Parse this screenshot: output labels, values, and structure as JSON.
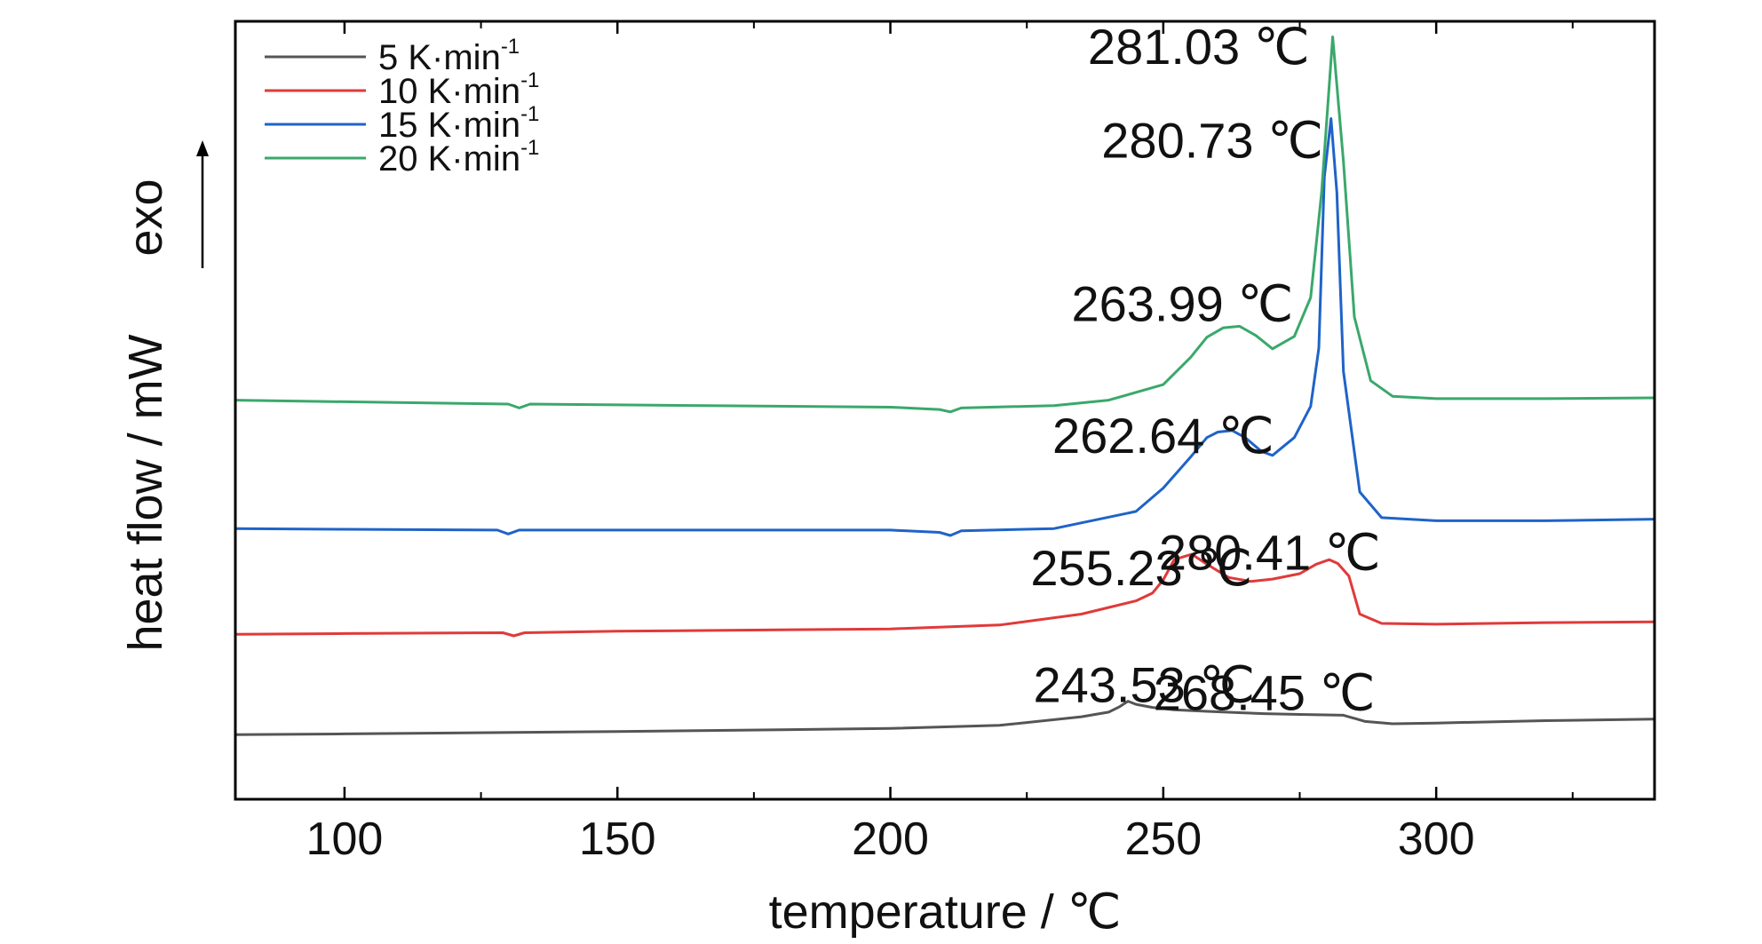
{
  "chart_data": {
    "type": "line",
    "xlabel": "temperature / ℃",
    "ylabel": "heat flow / mW",
    "direction_label": "exo",
    "xlim": [
      80,
      340
    ],
    "ylim": [
      0,
      100
    ],
    "x_ticks": [
      100,
      150,
      200,
      250,
      300
    ],
    "x_tick_labels": [
      "100",
      "150",
      "200",
      "250",
      "300"
    ],
    "x_minor_ticks": [
      125,
      175,
      225,
      275,
      325
    ],
    "legend_position": "top-left",
    "y_ticks_shown": false,
    "series": [
      {
        "name": "5 K·min",
        "name_main": "5 K·min",
        "name_sup": "-1",
        "color": "#555555",
        "x": [
          80,
          100,
          150,
          200,
          220,
          235,
          240,
          242,
          243.53,
          245,
          248,
          252,
          258,
          265,
          268.45,
          275,
          283,
          287,
          292,
          300,
          320,
          340
        ],
        "y": [
          8.3,
          8.4,
          8.7,
          9.1,
          9.5,
          10.6,
          11.2,
          11.9,
          12.6,
          12.2,
          11.8,
          11.5,
          11.3,
          11.1,
          11.0,
          10.9,
          10.8,
          10.0,
          9.7,
          9.8,
          10.1,
          10.3
        ]
      },
      {
        "name": "10 K·min",
        "name_main": "10 K·min",
        "name_sup": "-1",
        "color": "#e03a3a",
        "x": [
          80,
          100,
          129,
          131,
          133,
          150,
          200,
          220,
          235,
          245,
          248,
          250,
          252,
          255.23,
          258,
          262,
          266,
          270,
          275,
          278,
          280.41,
          282,
          284,
          286,
          290,
          300,
          320,
          340
        ],
        "y": [
          21.2,
          21.3,
          21.4,
          21.0,
          21.4,
          21.6,
          21.9,
          22.4,
          23.8,
          25.5,
          26.5,
          28.2,
          30.8,
          31.5,
          30.2,
          28.5,
          28.0,
          28.3,
          29.0,
          30.2,
          30.8,
          30.3,
          28.7,
          23.8,
          22.6,
          22.5,
          22.7,
          22.8
        ]
      },
      {
        "name": "15 K·min",
        "name_main": "15 K·min",
        "name_sup": "-1",
        "color": "#1f63c8",
        "x": [
          80,
          100,
          128,
          130,
          132,
          150,
          200,
          209,
          211,
          213,
          230,
          245,
          250,
          255,
          258,
          260,
          262.64,
          265,
          268,
          270,
          274,
          277,
          278.5,
          279.5,
          280.73,
          281.8,
          283,
          286,
          290,
          300,
          320,
          340
        ],
        "y": [
          34.8,
          34.7,
          34.6,
          34.1,
          34.6,
          34.6,
          34.6,
          34.3,
          33.9,
          34.5,
          34.8,
          37.0,
          40.0,
          44.0,
          46.5,
          47.2,
          47.4,
          46.5,
          44.7,
          44.2,
          46.5,
          50.5,
          58.0,
          80.0,
          87.5,
          78.0,
          55.0,
          39.5,
          36.2,
          35.8,
          35.8,
          36.0
        ]
      },
      {
        "name": "20 K·min",
        "name_main": "20 K·min",
        "name_sup": "-1",
        "color": "#3aa86b",
        "x": [
          80,
          100,
          130,
          132,
          134,
          150,
          200,
          209,
          211,
          213,
          230,
          240,
          250,
          255,
          258,
          261,
          263.99,
          267,
          270,
          274,
          277,
          279,
          281.03,
          283,
          285,
          288,
          292,
          300,
          320,
          340
        ],
        "y": [
          51.3,
          51.1,
          50.8,
          50.3,
          50.8,
          50.7,
          50.4,
          50.1,
          49.8,
          50.3,
          50.6,
          51.3,
          53.3,
          56.8,
          59.4,
          60.6,
          60.8,
          59.6,
          57.9,
          59.5,
          64.5,
          78.0,
          98.0,
          82.0,
          62.0,
          53.8,
          51.8,
          51.5,
          51.5,
          51.6
        ]
      }
    ],
    "annotations": [
      {
        "text": "281.03 ℃",
        "x": 256.5,
        "y": 94.5,
        "series": "20 K·min"
      },
      {
        "text": "280.73 ℃",
        "x": 259,
        "y": 82.5,
        "series": "15 K·min"
      },
      {
        "text": "263.99 ℃",
        "x": 253.5,
        "y": 61.5,
        "series": "20 K·min"
      },
      {
        "text": "262.64 ℃",
        "x": 250,
        "y": 44.5,
        "series": "15 K·min"
      },
      {
        "text": "255.23 ℃",
        "x": 246,
        "y": 27.5,
        "series": "10 K·min"
      },
      {
        "text": "280.41 ℃",
        "x": 269.5,
        "y": 29.5,
        "series": "10 K·min"
      },
      {
        "text": "243.53 ℃",
        "x": 246.5,
        "y": 12.5,
        "series": "5 K·min"
      },
      {
        "text": "268.45 ℃",
        "x": 268.5,
        "y": 11.5,
        "series": "5 K·min"
      }
    ]
  }
}
